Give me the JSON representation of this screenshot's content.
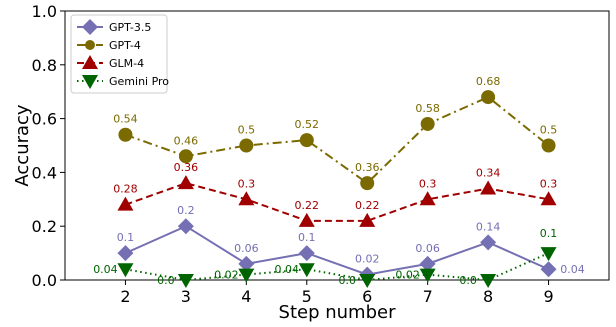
{
  "chart_data": {
    "type": "line",
    "title": "",
    "xlabel": "Step number",
    "ylabel": "Accuracy",
    "x": [
      2,
      3,
      4,
      5,
      6,
      7,
      8,
      9
    ],
    "xlim": [
      1.0,
      10.0
    ],
    "ylim": [
      0.0,
      1.0
    ],
    "yticks": [
      0.0,
      0.2,
      0.4,
      0.6,
      0.8,
      1.0
    ],
    "ytick_labels": [
      "0.0",
      "0.2",
      "0.4",
      "0.6",
      "0.8",
      "1.0"
    ],
    "grid": false,
    "legend_position": "top-left",
    "series": [
      {
        "name": "GPT-3.5",
        "values": [
          0.1,
          0.2,
          0.06,
          0.1,
          0.02,
          0.06,
          0.14,
          0.04
        ],
        "labels": [
          "0.1",
          "0.2",
          "0.06",
          "0.1",
          "0.02",
          "0.06",
          "0.14",
          "0.04"
        ],
        "color": "#7570b3",
        "line_style": "solid",
        "marker": "diamond"
      },
      {
        "name": "GPT-4",
        "values": [
          0.54,
          0.46,
          0.5,
          0.52,
          0.36,
          0.58,
          0.68,
          0.5
        ],
        "labels": [
          "0.54",
          "0.46",
          "0.5",
          "0.52",
          "0.36",
          "0.58",
          "0.68",
          "0.5"
        ],
        "color": "#7a6a00",
        "line_style": "dashdot",
        "marker": "circle"
      },
      {
        "name": "GLM-4",
        "values": [
          0.28,
          0.36,
          0.3,
          0.22,
          0.22,
          0.3,
          0.34,
          0.3
        ],
        "labels": [
          "0.28",
          "0.36",
          "0.3",
          "0.22",
          "0.22",
          "0.3",
          "0.34",
          "0.3"
        ],
        "color": "#a00000",
        "line_style": "dashed",
        "marker": "triangle-up"
      },
      {
        "name": "Gemini Pro",
        "values": [
          0.04,
          0.0,
          0.02,
          0.04,
          0.0,
          0.02,
          0.0,
          0.1
        ],
        "labels": [
          "0.04",
          "0.0",
          "0.02",
          "0.04",
          "0.0",
          "0.02",
          "0.0",
          "0.1"
        ],
        "color": "#006400",
        "line_style": "dotted",
        "marker": "triangle-down"
      }
    ]
  }
}
